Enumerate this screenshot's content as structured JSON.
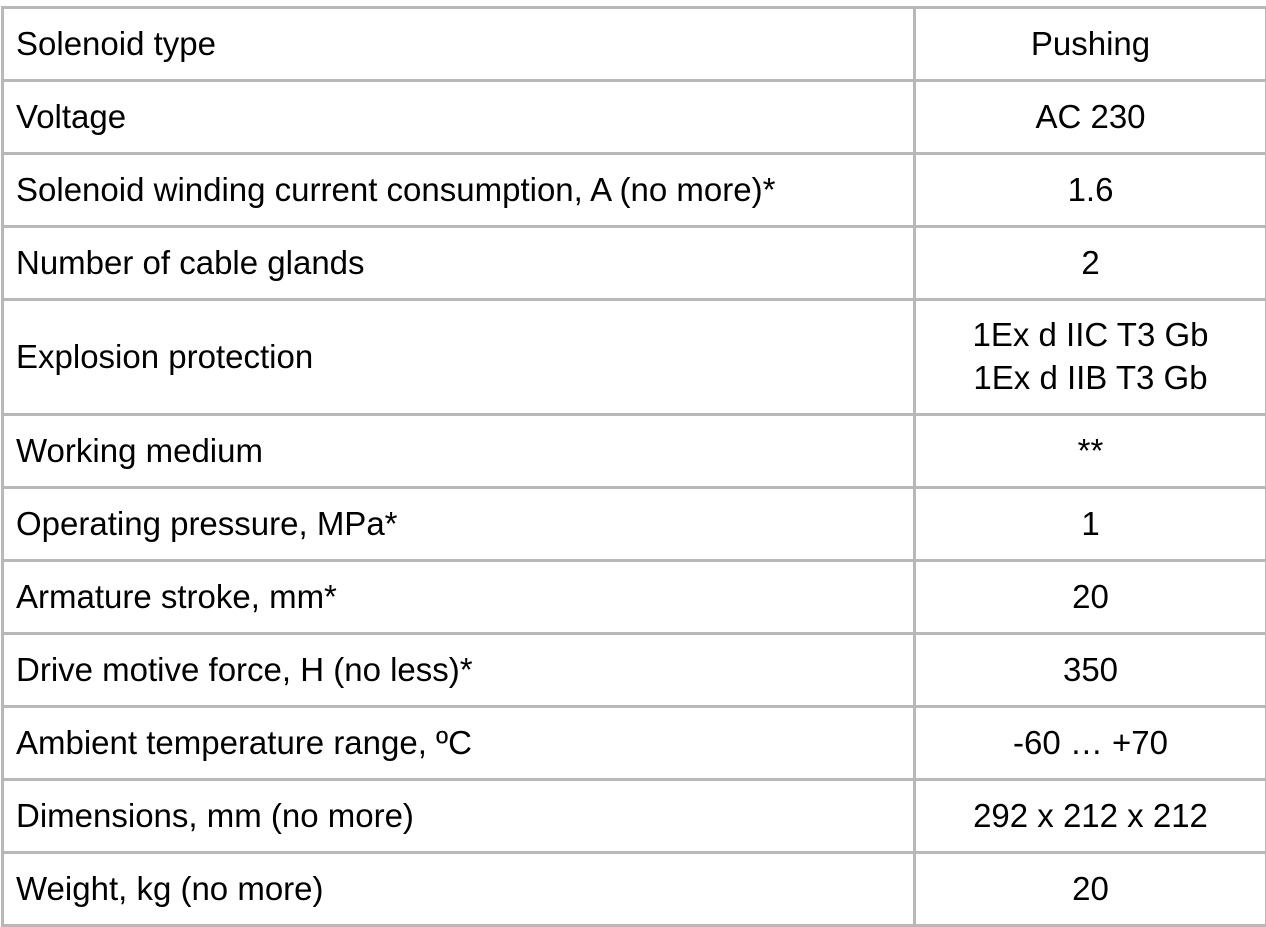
{
  "table": {
    "name": "solenoid-specifications",
    "border_color": "#b8b8bb",
    "text_color": "#000000",
    "columns": [
      "parameter",
      "value"
    ],
    "rows": [
      {
        "label": "Solenoid type",
        "value": "Pushing"
      },
      {
        "label": "Voltage",
        "value": "AC 230"
      },
      {
        "label": "Solenoid winding current consumption, A (no more)*",
        "value": "1.6"
      },
      {
        "label": "Number of cable glands",
        "value": "2"
      },
      {
        "label": "Explosion protection",
        "value": "1Ex d IIC T3 Gb\n1Ex d IIB T3 Gb"
      },
      {
        "label": "Working medium",
        "value": "**"
      },
      {
        "label": "Operating pressure, MPa*",
        "value": "1"
      },
      {
        "label": "Armature stroke, mm*",
        "value": "20"
      },
      {
        "label": "Drive motive force, H (no less)*",
        "value": "350"
      },
      {
        "label": "Ambient temperature range, ºC",
        "value": "-60 … +70"
      },
      {
        "label": "Dimensions, mm (no more)",
        "value": "292 x 212 x 212"
      },
      {
        "label": "Weight, kg (no more)",
        "value": "20"
      }
    ]
  }
}
